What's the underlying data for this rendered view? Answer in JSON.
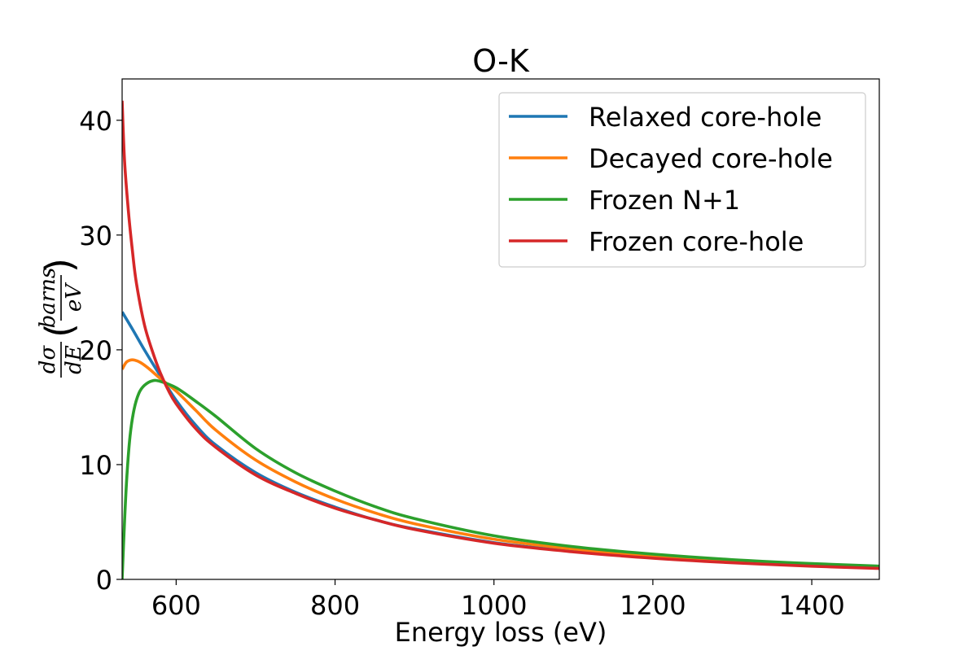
{
  "chart_data": {
    "type": "line",
    "title": "O-K",
    "xlabel": "Energy loss (eV)",
    "ylabel": {
      "num": "dσ",
      "den": "dE",
      "unit_num": "barns",
      "unit_den": "eV",
      "open_paren": "(",
      "close_paren": ")"
    },
    "xlim": [
      532,
      1485
    ],
    "ylim": [
      0,
      43.6
    ],
    "xticks": [
      600,
      800,
      1000,
      1200,
      1400
    ],
    "yticks": [
      0,
      10,
      20,
      30,
      40
    ],
    "legend_position": "top-right",
    "grid": false,
    "series": [
      {
        "name": "Relaxed core-hole",
        "color": "#1f77b4",
        "x": [
          532,
          545,
          560,
          575,
          600,
          625,
          650,
          700,
          750,
          800,
          850,
          900,
          1000,
          1100,
          1200,
          1300,
          1400,
          1485
        ],
        "y": [
          23.3,
          21.8,
          20.0,
          18.3,
          15.6,
          13.4,
          11.7,
          9.3,
          7.6,
          6.3,
          5.2,
          4.4,
          3.2,
          2.45,
          1.9,
          1.5,
          1.2,
          1.0
        ]
      },
      {
        "name": "Decayed core-hole",
        "color": "#ff7f0e",
        "x": [
          532,
          537,
          542,
          548,
          555,
          565,
          580,
          600,
          625,
          650,
          700,
          750,
          800,
          850,
          900,
          1000,
          1100,
          1200,
          1300,
          1400,
          1485
        ],
        "y": [
          18.3,
          18.9,
          19.1,
          19.1,
          18.9,
          18.4,
          17.5,
          16.4,
          14.7,
          13.0,
          10.4,
          8.5,
          7.0,
          5.8,
          4.85,
          3.5,
          2.65,
          2.05,
          1.62,
          1.3,
          1.08
        ]
      },
      {
        "name": "Frozen N+1",
        "color": "#2ca02c",
        "x": [
          532,
          535,
          538,
          542,
          547,
          553,
          560,
          570,
          580,
          600,
          625,
          650,
          700,
          750,
          800,
          850,
          900,
          1000,
          1100,
          1200,
          1300,
          1400,
          1485
        ],
        "y": [
          0.0,
          5.0,
          9.0,
          12.5,
          14.8,
          16.2,
          16.9,
          17.3,
          17.25,
          16.7,
          15.5,
          14.2,
          11.4,
          9.3,
          7.7,
          6.35,
          5.3,
          3.8,
          2.85,
          2.2,
          1.72,
          1.38,
          1.16
        ]
      },
      {
        "name": "Frozen core-hole",
        "color": "#d62728",
        "x": [
          532,
          535,
          540,
          545,
          550,
          560,
          570,
          580,
          590,
          600,
          625,
          650,
          700,
          750,
          800,
          850,
          900,
          1000,
          1100,
          1200,
          1300,
          1400,
          1485
        ],
        "y": [
          41.7,
          36.5,
          32.0,
          28.6,
          25.8,
          22.2,
          19.9,
          18.0,
          16.5,
          15.3,
          13.1,
          11.5,
          9.1,
          7.5,
          6.2,
          5.2,
          4.35,
          3.15,
          2.4,
          1.85,
          1.45,
          1.15,
          0.95
        ]
      }
    ]
  }
}
